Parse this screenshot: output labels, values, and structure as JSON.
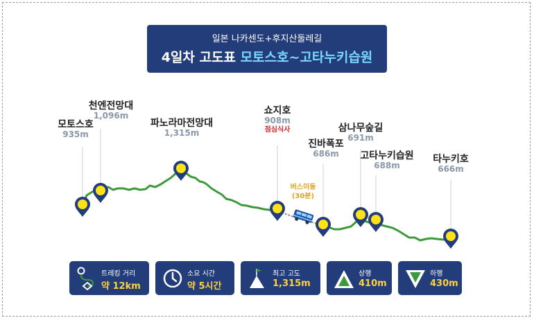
{
  "header": {
    "subtitle": "일본 나카센도+후지산둘레길",
    "title_prefix": "4일차 고도표 ",
    "title_highlight": "모토스호~고타누키습원"
  },
  "waypoints": [
    {
      "name": "모토스호",
      "elevation": "935m"
    },
    {
      "name": "천엔전망대",
      "elevation": "1,096m"
    },
    {
      "name": "파노라마전망대",
      "elevation": "1,315m"
    },
    {
      "name": "쇼지호",
      "elevation": "908m",
      "note": "점심식사"
    },
    {
      "name": "진바폭포",
      "elevation": "686m"
    },
    {
      "name": "삼나무숲길",
      "elevation": "691m"
    },
    {
      "name": "고타누키습원",
      "elevation": "688m"
    },
    {
      "name": "타누키호",
      "elevation": "666m"
    }
  ],
  "bus": {
    "line1": "버스이동",
    "line2": "(30분)"
  },
  "stats": [
    {
      "label": "트레킹 거리",
      "value": "약 12km",
      "icon": "route-icon"
    },
    {
      "label": "소요 시간",
      "value": "약 5시간",
      "icon": "clock-icon"
    },
    {
      "label": "최고 고도",
      "value": "1,315m",
      "icon": "mountain-flag-icon"
    },
    {
      "label": "상행",
      "value": "410m",
      "icon": "triangle-up-icon"
    },
    {
      "label": "하행",
      "value": "430m",
      "icon": "triangle-down-icon"
    }
  ],
  "colors": {
    "navy": "#233d7a",
    "route_green": "#3d9a3b",
    "marker_yellow": "#ffe21a",
    "accent_yellow": "#ffd23f",
    "highlight_blue": "#7ad8ff",
    "lunch_red": "#d32a2a",
    "bus_orange": "#e0a21c"
  }
}
